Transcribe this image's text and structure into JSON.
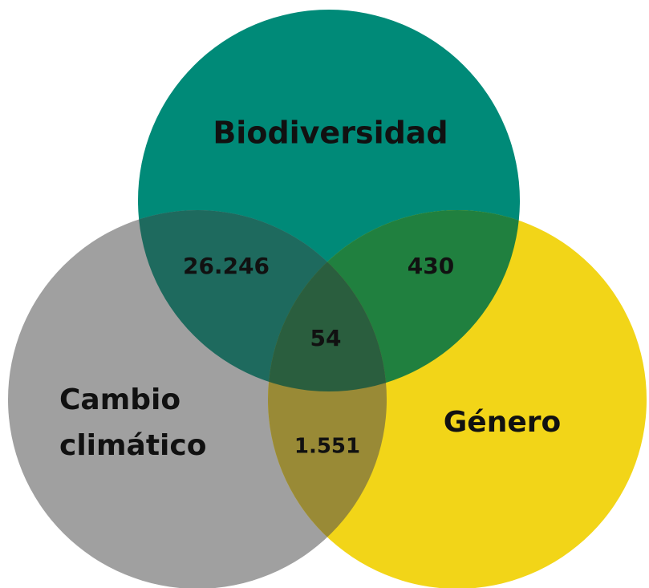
{
  "sets": [
    {
      "label_lines": [
        "Biodiversidad"
      ]
    },
    {
      "label_lines": [
        "Cambio",
        "climático"
      ]
    },
    {
      "label_lines": [
        "Género"
      ]
    }
  ],
  "intersections": {
    "biodiversidad_cambio": "26.246",
    "biodiversidad_genero": "430",
    "cambio_genero": "1.551",
    "all": "54"
  }
}
